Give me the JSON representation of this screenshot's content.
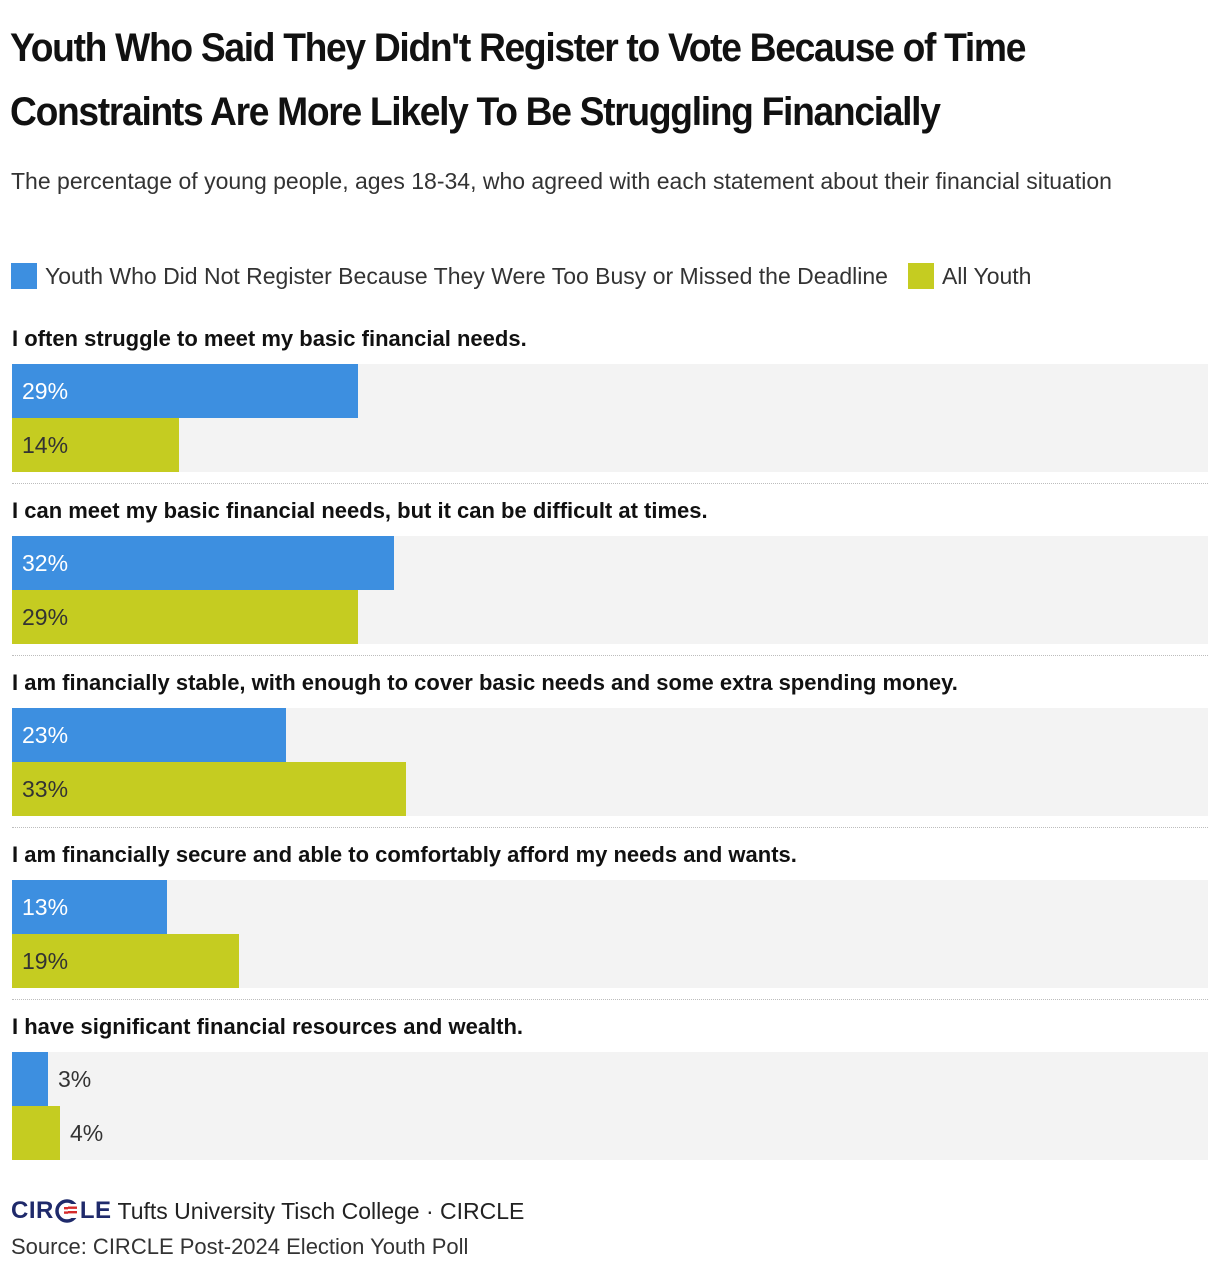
{
  "chart_data": {
    "type": "bar",
    "orientation": "horizontal",
    "title": "Youth Who Said They Didn't Register to Vote Because of Time Constraints Are More Likely To Be Struggling Financially",
    "subtitle": "The percentage of young people, ages 18-34, who agreed with each statement about their financial situation",
    "categories": [
      "I often struggle to meet my basic financial needs.",
      "I can meet my basic financial needs, but it can be difficult at times.",
      "I am financially stable, with enough to cover basic needs and some extra spending money.",
      "I am financially secure and able to comfortably afford my needs and wants.",
      "I have significant financial resources and wealth."
    ],
    "series": [
      {
        "name": "Youth Who Did Not Register Because They Were Too Busy or Missed the Deadline",
        "color": "#3d8fe0",
        "values": [
          29,
          32,
          23,
          13,
          3
        ],
        "labels": [
          "29%",
          "32%",
          "23%",
          "13%",
          "3%"
        ]
      },
      {
        "name": "All Youth",
        "color": "#c5cc21",
        "values": [
          14,
          29,
          33,
          19,
          4
        ],
        "labels": [
          "14%",
          "29%",
          "33%",
          "19%",
          "4%"
        ]
      }
    ],
    "xlim": [
      0,
      100
    ],
    "unit": "%",
    "grid": false,
    "legend": "top-left"
  },
  "footer": {
    "logo_text": "CIRCLE",
    "organization": "Tufts University Tisch College · CIRCLE",
    "source": "Source: CIRCLE Post-2024 Election Youth Poll"
  },
  "colors": {
    "track": "#f3f3f3",
    "logo_navy": "#1f2a6b",
    "logo_red": "#d52b2b"
  }
}
